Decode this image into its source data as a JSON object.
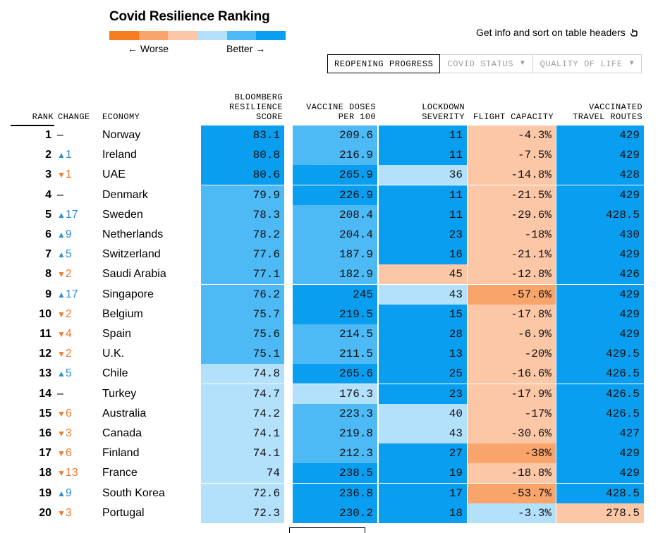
{
  "title": "Covid Resilience Ranking",
  "legend": {
    "worse_label": "← Worse",
    "better_label": "Better →",
    "colors": [
      "#f57c1f",
      "#f8a46a",
      "#fcc7a6",
      "#b3e0fb",
      "#4db9f5",
      "#0a9ef0"
    ]
  },
  "info_text": "Get info and sort on table headers",
  "info_icon": "click-hand-icon",
  "tabs": [
    {
      "label": "REOPENING PROGRESS",
      "active": true
    },
    {
      "label": "COVID STATUS",
      "caret": "▼"
    },
    {
      "label": "QUALITY OF LIFE",
      "caret": "▼"
    }
  ],
  "headers": {
    "rank": "RANK",
    "change": "CHANGE",
    "economy": "ECONOMY",
    "score": [
      "BLOOMBERG",
      "RESILIENCE",
      "SCORE"
    ],
    "vaccine": [
      "VACCINE DOSES",
      "PER 100"
    ],
    "lockdown": [
      "LOCKDOWN",
      "SEVERITY"
    ],
    "flight": [
      "FLIGHT CAPACITY"
    ],
    "routes": [
      "VACCINATED",
      "TRAVEL ROUTES"
    ]
  },
  "rows": [
    {
      "rank": "1",
      "change": "–",
      "dir": "none",
      "economy": "Norway",
      "score": "83.1",
      "vaccine": "209.6",
      "lockdown": "11",
      "flight": "-4.3%",
      "routes": "429"
    },
    {
      "rank": "2",
      "change": "1",
      "dir": "up",
      "economy": "Ireland",
      "score": "80.8",
      "vaccine": "216.9",
      "lockdown": "11",
      "flight": "-7.5%",
      "routes": "429"
    },
    {
      "rank": "3",
      "change": "1",
      "dir": "down",
      "economy": "UAE",
      "score": "80.6",
      "vaccine": "265.9",
      "lockdown": "36",
      "flight": "-14.8%",
      "routes": "428"
    },
    {
      "rank": "4",
      "change": "–",
      "dir": "none",
      "economy": "Denmark",
      "score": "79.9",
      "vaccine": "226.9",
      "lockdown": "11",
      "flight": "-21.5%",
      "routes": "429"
    },
    {
      "rank": "5",
      "change": "17",
      "dir": "up",
      "economy": "Sweden",
      "score": "78.3",
      "vaccine": "208.4",
      "lockdown": "11",
      "flight": "-29.6%",
      "routes": "428.5"
    },
    {
      "rank": "6",
      "change": "9",
      "dir": "up",
      "economy": "Netherlands",
      "score": "78.2",
      "vaccine": "204.4",
      "lockdown": "23",
      "flight": "-18%",
      "routes": "430"
    },
    {
      "rank": "7",
      "change": "5",
      "dir": "up",
      "economy": "Switzerland",
      "score": "77.6",
      "vaccine": "187.9",
      "lockdown": "16",
      "flight": "-21.1%",
      "routes": "429"
    },
    {
      "rank": "8",
      "change": "2",
      "dir": "down",
      "economy": "Saudi Arabia",
      "score": "77.1",
      "vaccine": "182.9",
      "lockdown": "45",
      "flight": "-12.8%",
      "routes": "426"
    },
    {
      "rank": "9",
      "change": "17",
      "dir": "up",
      "economy": "Singapore",
      "score": "76.2",
      "vaccine": "245",
      "lockdown": "43",
      "flight": "-57.6%",
      "routes": "429"
    },
    {
      "rank": "10",
      "change": "2",
      "dir": "down",
      "economy": "Belgium",
      "score": "75.7",
      "vaccine": "219.5",
      "lockdown": "15",
      "flight": "-17.8%",
      "routes": "429"
    },
    {
      "rank": "11",
      "change": "4",
      "dir": "down",
      "economy": "Spain",
      "score": "75.6",
      "vaccine": "214.5",
      "lockdown": "28",
      "flight": "-6.9%",
      "routes": "429"
    },
    {
      "rank": "12",
      "change": "2",
      "dir": "down",
      "economy": "U.K.",
      "score": "75.1",
      "vaccine": "211.5",
      "lockdown": "13",
      "flight": "-20%",
      "routes": "429.5"
    },
    {
      "rank": "13",
      "change": "5",
      "dir": "up",
      "economy": "Chile",
      "score": "74.8",
      "vaccine": "265.6",
      "lockdown": "25",
      "flight": "-16.6%",
      "routes": "426.5"
    },
    {
      "rank": "14",
      "change": "–",
      "dir": "none",
      "economy": "Turkey",
      "score": "74.7",
      "vaccine": "176.3",
      "lockdown": "23",
      "flight": "-17.9%",
      "routes": "426.5"
    },
    {
      "rank": "15",
      "change": "6",
      "dir": "down",
      "economy": "Australia",
      "score": "74.2",
      "vaccine": "223.3",
      "lockdown": "40",
      "flight": "-17%",
      "routes": "426.5"
    },
    {
      "rank": "16",
      "change": "3",
      "dir": "down",
      "economy": "Canada",
      "score": "74.1",
      "vaccine": "219.8",
      "lockdown": "43",
      "flight": "-30.6%",
      "routes": "427"
    },
    {
      "rank": "17",
      "change": "6",
      "dir": "down",
      "economy": "Finland",
      "score": "74.1",
      "vaccine": "212.3",
      "lockdown": "27",
      "flight": "-38%",
      "routes": "429"
    },
    {
      "rank": "18",
      "change": "13",
      "dir": "down",
      "economy": "France",
      "score": "74",
      "vaccine": "238.5",
      "lockdown": "19",
      "flight": "-18.8%",
      "routes": "429"
    },
    {
      "rank": "19",
      "change": "9",
      "dir": "up",
      "economy": "South Korea",
      "score": "72.6",
      "vaccine": "236.8",
      "lockdown": "17",
      "flight": "-53.7%",
      "routes": "428.5"
    },
    {
      "rank": "20",
      "change": "3",
      "dir": "down",
      "economy": "Portugal",
      "score": "72.3",
      "vaccine": "230.2",
      "lockdown": "18",
      "flight": "-3.3%",
      "routes": "278.5"
    }
  ],
  "cell_colors": {
    "score": [
      "#0a9ef0",
      "#0a9ef0",
      "#0a9ef0",
      "#4db9f5",
      "#4db9f5",
      "#4db9f5",
      "#4db9f5",
      "#4db9f5",
      "#4db9f5",
      "#4db9f5",
      "#4db9f5",
      "#4db9f5",
      "#b3e0fb",
      "#b3e0fb",
      "#b3e0fb",
      "#b3e0fb",
      "#b3e0fb",
      "#b3e0fb",
      "#b3e0fb",
      "#b3e0fb"
    ],
    "vaccine": [
      "#4db9f5",
      "#4db9f5",
      "#0a9ef0",
      "#0a9ef0",
      "#4db9f5",
      "#4db9f5",
      "#4db9f5",
      "#4db9f5",
      "#0a9ef0",
      "#0a9ef0",
      "#4db9f5",
      "#4db9f5",
      "#0a9ef0",
      "#b3e0fb",
      "#4db9f5",
      "#4db9f5",
      "#4db9f5",
      "#0a9ef0",
      "#0a9ef0",
      "#0a9ef0"
    ],
    "lockdown": [
      "#0a9ef0",
      "#0a9ef0",
      "#b3e0fb",
      "#0a9ef0",
      "#0a9ef0",
      "#0a9ef0",
      "#0a9ef0",
      "#fcc7a6",
      "#b3e0fb",
      "#0a9ef0",
      "#0a9ef0",
      "#0a9ef0",
      "#0a9ef0",
      "#0a9ef0",
      "#b3e0fb",
      "#b3e0fb",
      "#0a9ef0",
      "#0a9ef0",
      "#0a9ef0",
      "#0a9ef0"
    ],
    "flight": [
      "#fcc7a6",
      "#fcc7a6",
      "#fcc7a6",
      "#fcc7a6",
      "#fcc7a6",
      "#fcc7a6",
      "#fcc7a6",
      "#fcc7a6",
      "#f8a46a",
      "#fcc7a6",
      "#fcc7a6",
      "#fcc7a6",
      "#fcc7a6",
      "#fcc7a6",
      "#fcc7a6",
      "#fcc7a6",
      "#f8a46a",
      "#fcc7a6",
      "#f8a46a",
      "#b3e0fb"
    ],
    "routes": [
      "#0a9ef0",
      "#0a9ef0",
      "#0a9ef0",
      "#0a9ef0",
      "#0a9ef0",
      "#0a9ef0",
      "#0a9ef0",
      "#0a9ef0",
      "#0a9ef0",
      "#0a9ef0",
      "#0a9ef0",
      "#0a9ef0",
      "#0a9ef0",
      "#0a9ef0",
      "#0a9ef0",
      "#0a9ef0",
      "#0a9ef0",
      "#0a9ef0",
      "#0a9ef0",
      "#fcc7a6"
    ]
  },
  "arrows": {
    "up": "▲",
    "down": "▼"
  }
}
